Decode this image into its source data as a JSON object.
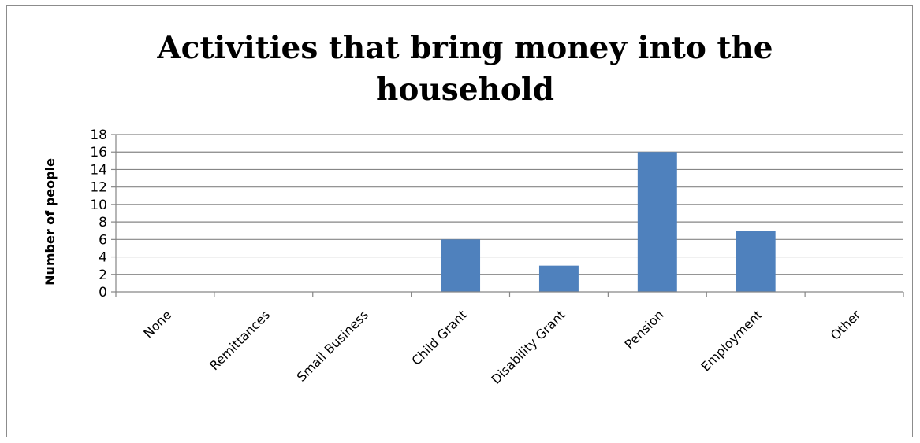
{
  "chart_data": {
    "type": "bar",
    "title_lines": [
      "Activities that bring money into the",
      "household"
    ],
    "ylabel": "Number of people",
    "xlabel": "",
    "categories": [
      "None",
      "Remittances",
      "Small Business",
      "Child Grant",
      "Disability Grant",
      "Pension",
      "Employment",
      "Other"
    ],
    "values": [
      0,
      0,
      0,
      6,
      3,
      16,
      7,
      0
    ],
    "ylim": [
      0,
      18
    ],
    "yticks": [
      "0",
      "2",
      "4",
      "6",
      "8",
      "10",
      "12",
      "14",
      "16",
      "18"
    ],
    "grid": true,
    "legend": "none",
    "bar_color": "#4f81bd",
    "grid_color": "#868686"
  }
}
